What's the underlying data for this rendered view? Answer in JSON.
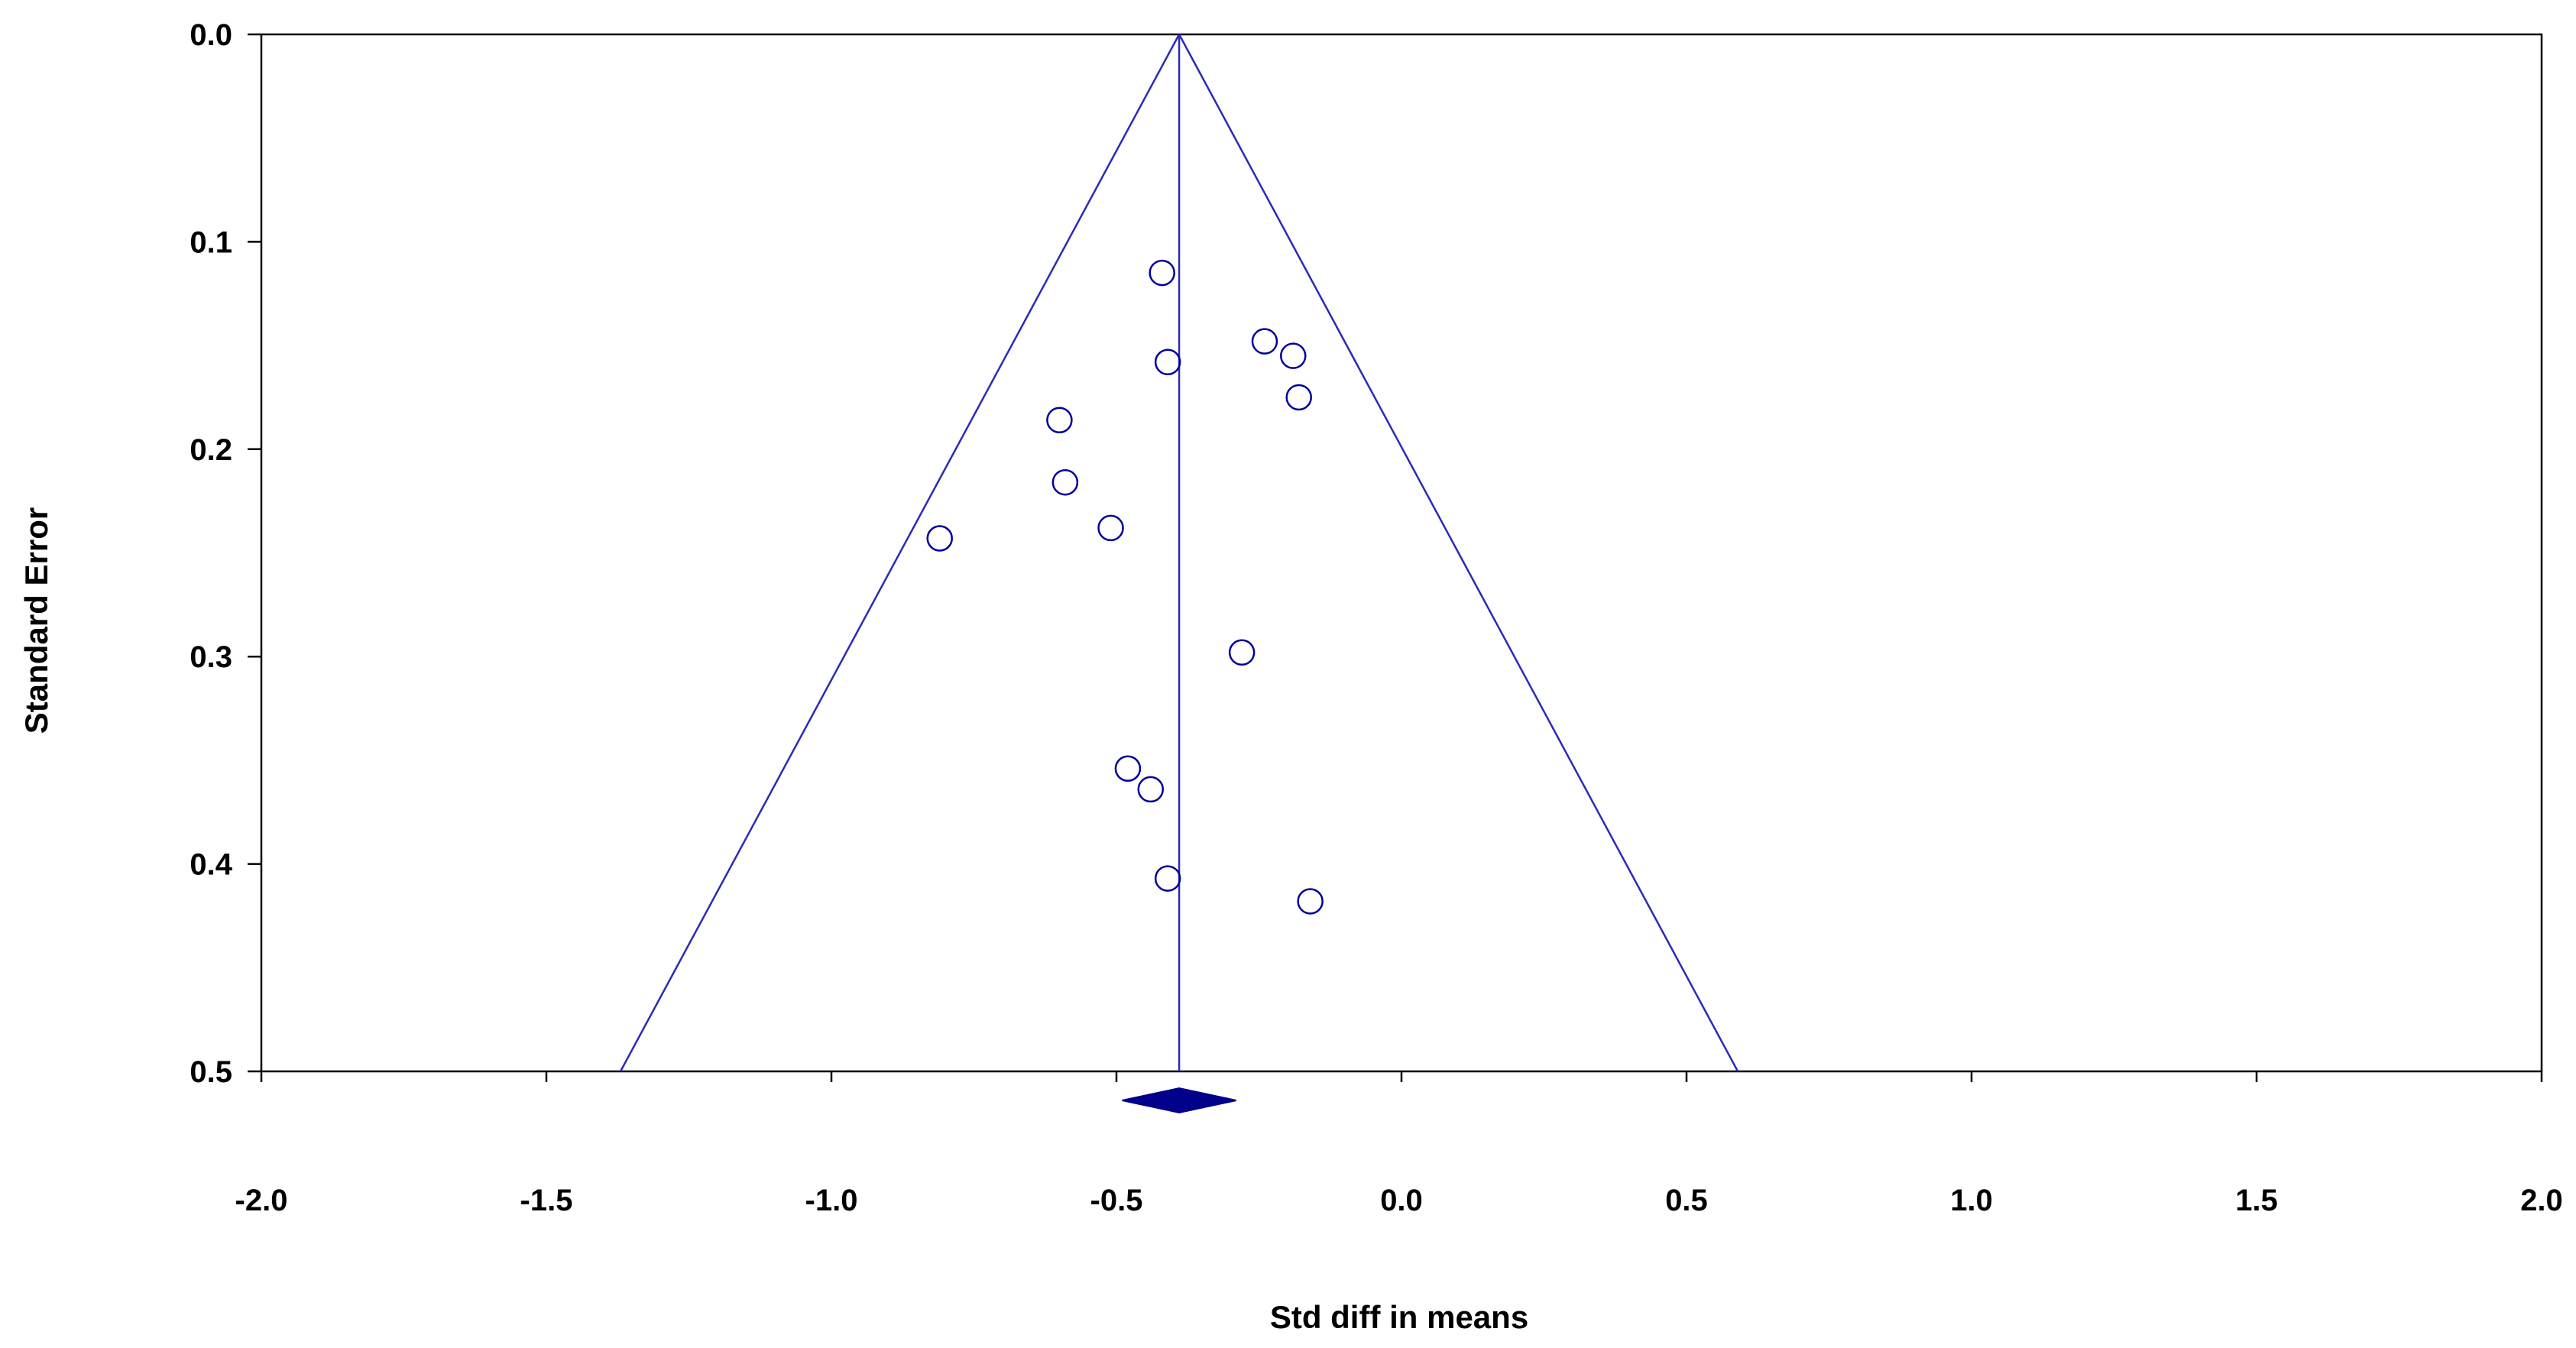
{
  "chart_data": {
    "type": "scatter",
    "title": "",
    "xlabel": "Std diff in means",
    "ylabel": "Standard Error",
    "xlim": [
      -2.0,
      2.0
    ],
    "ylim": [
      0.0,
      0.5
    ],
    "y_inverted": true,
    "grid": false,
    "x_ticks": [
      "-2.0",
      "-1.5",
      "-1.0",
      "-0.5",
      "0.0",
      "0.5",
      "1.0",
      "1.5",
      "2.0"
    ],
    "x_tick_values": [
      -2.0,
      -1.5,
      -1.0,
      -0.5,
      0.0,
      0.5,
      1.0,
      1.5,
      2.0
    ],
    "y_ticks": [
      "0.0",
      "0.1",
      "0.2",
      "0.3",
      "0.4",
      "0.5"
    ],
    "y_tick_values": [
      0.0,
      0.1,
      0.2,
      0.3,
      0.4,
      0.5
    ],
    "summary_effect": -0.39,
    "summary_ci": [
      -0.49,
      -0.29
    ],
    "funnel_z": 1.96,
    "colors": {
      "points": "#0000a0",
      "lines": "#2b2bb5",
      "diamond": "#00008b",
      "axes": "#000000"
    },
    "points": [
      {
        "x": -0.42,
        "y": 0.115
      },
      {
        "x": -0.24,
        "y": 0.148
      },
      {
        "x": -0.19,
        "y": 0.155
      },
      {
        "x": -0.41,
        "y": 0.158
      },
      {
        "x": -0.18,
        "y": 0.175
      },
      {
        "x": -0.6,
        "y": 0.186
      },
      {
        "x": -0.59,
        "y": 0.216
      },
      {
        "x": -0.51,
        "y": 0.238
      },
      {
        "x": -0.81,
        "y": 0.243
      },
      {
        "x": -0.28,
        "y": 0.298
      },
      {
        "x": -0.48,
        "y": 0.354
      },
      {
        "x": -0.44,
        "y": 0.364
      },
      {
        "x": -0.41,
        "y": 0.407
      },
      {
        "x": -0.16,
        "y": 0.418
      }
    ]
  }
}
